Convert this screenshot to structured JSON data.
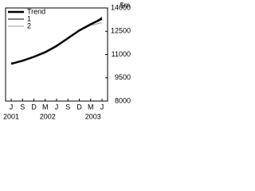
{
  "chart_data": {
    "type": "line",
    "y_axis_label": "$m",
    "categories": [
      "J",
      "S",
      "D",
      "M",
      "J",
      "S",
      "D",
      "M",
      "J"
    ],
    "year_labels": [
      "2001",
      null,
      null,
      "2002",
      null,
      null,
      null,
      "2003",
      null
    ],
    "series": [
      {
        "name": "Trend",
        "color": "#000000",
        "width": 2.5,
        "values": [
          10400,
          10600,
          10850,
          11150,
          11550,
          12050,
          12550,
          12950,
          13300
        ]
      },
      {
        "name": "1",
        "color": "#000000",
        "width": 1,
        "values": [
          10450,
          10580,
          10870,
          11120,
          11600,
          12000,
          12600,
          12900,
          13400
        ]
      },
      {
        "name": "2",
        "color": "#999999",
        "width": 1,
        "values": [
          10380,
          10620,
          10830,
          11180,
          11520,
          12080,
          12520,
          12880,
          13050
        ]
      }
    ],
    "ylim": [
      8000,
      14000
    ],
    "yticks": [
      8000,
      9500,
      11000,
      12500,
      14000
    ]
  }
}
